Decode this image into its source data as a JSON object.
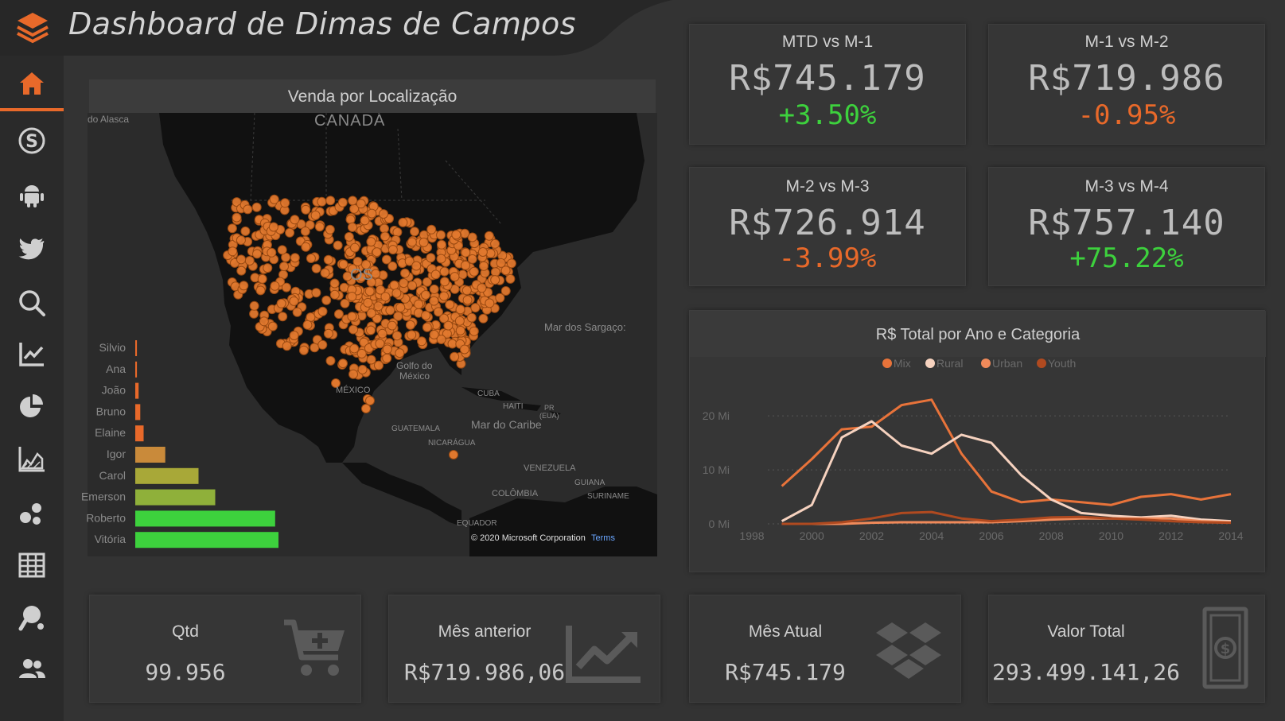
{
  "header": {
    "title": "Dashboard de Dimas de Campos",
    "logo_icon": "layers-icon"
  },
  "sidebar": {
    "items": [
      {
        "name": "home",
        "icon": "home-icon",
        "active": true
      },
      {
        "name": "skype",
        "icon": "skype-icon"
      },
      {
        "name": "android",
        "icon": "android-icon"
      },
      {
        "name": "twitter",
        "icon": "twitter-icon"
      },
      {
        "name": "search",
        "icon": "search-icon"
      },
      {
        "name": "line-chart",
        "icon": "line-chart-icon"
      },
      {
        "name": "pie-chart",
        "icon": "pie-chart-icon"
      },
      {
        "name": "area-chart",
        "icon": "area-chart-icon"
      },
      {
        "name": "scatter",
        "icon": "scatter-icon"
      },
      {
        "name": "table",
        "icon": "table-icon"
      },
      {
        "name": "ping-pong",
        "icon": "ping-pong-icon"
      },
      {
        "name": "users",
        "icon": "users-icon"
      }
    ]
  },
  "colors": {
    "accent": "#e8692a",
    "positive": "#3dd13d",
    "negative": "#e8692a",
    "background": "#333333"
  },
  "kpis": [
    {
      "label": "MTD vs M-1",
      "value": "R$745.179",
      "delta": "+3.50%",
      "trend": "up"
    },
    {
      "label": "M-1 vs M-2",
      "value": "R$719.986",
      "delta": "-0.95%",
      "trend": "down"
    },
    {
      "label": "M-2 vs M-3",
      "value": "R$726.914",
      "delta": "-3.99%",
      "trend": "down"
    },
    {
      "label": "M-3 vs M-4",
      "value": "R$757.140",
      "delta": "+75.22%",
      "trend": "up"
    }
  ],
  "map": {
    "title": "Venda por Localização",
    "labels": {
      "alaska": "do Alasca",
      "canada": "CANADÁ",
      "sargasso": "Mar dos Sargaço:",
      "gulf1": "Golfo do",
      "gulf2": "México",
      "mexico": "MÉXICO",
      "cuba": "CUBA",
      "haiti": "HAITI",
      "pr1": "PR",
      "pr2": "(EUA)",
      "caribbean": "Mar do Caribe",
      "guatemala": "GUATEMALA",
      "nicaragua": "NICARÁGUA",
      "venezuela": "VENEZUELA",
      "guiana": "GUIANA",
      "suriname": "SURINAME",
      "colombia": "COLÔMBIA",
      "ecuador": "EQUADOR",
      "us": "OS"
    },
    "copyright": "© 2020 Microsoft Corporation",
    "terms": "Terms"
  },
  "bar_chart": {
    "type": "bar",
    "orientation": "horizontal",
    "categories": [
      "Silvio",
      "Ana",
      "João",
      "Bruno",
      "Elaine",
      "Igor",
      "Carol",
      "Emerson",
      "Roberto",
      "Vitória"
    ],
    "values": [
      1,
      1,
      2,
      3,
      5,
      18,
      38,
      48,
      84,
      86
    ],
    "colors": [
      "#e8692a",
      "#e8692a",
      "#e8692a",
      "#e8692a",
      "#e8692a",
      "#c98a3a",
      "#a8a838",
      "#8fb03a",
      "#3dd13d",
      "#3dd13d"
    ]
  },
  "chart_data": {
    "type": "line",
    "title": "R$ Total por Ano e Categoria",
    "x": [
      1999,
      2000,
      2001,
      2002,
      2003,
      2004,
      2005,
      2006,
      2007,
      2008,
      2009,
      2010,
      2011,
      2012,
      2013,
      2014
    ],
    "x_ticks": [
      "1998",
      "2000",
      "2002",
      "2004",
      "2006",
      "2008",
      "2010",
      "2012",
      "2014"
    ],
    "xlim": [
      1998,
      2014
    ],
    "ylim": [
      0,
      24
    ],
    "y_ticks": [
      {
        "value": 0,
        "label": "0 Mi"
      },
      {
        "value": 10,
        "label": "10 Mi"
      },
      {
        "value": 20,
        "label": "20 Mi"
      }
    ],
    "grid": true,
    "legend_position": "top",
    "series": [
      {
        "name": "Mix",
        "color": "#e8733a",
        "values": [
          7,
          12,
          17.5,
          18,
          22,
          23,
          13,
          6,
          4,
          4.5,
          4,
          3.5,
          5,
          5.5,
          4.5,
          5.5
        ]
      },
      {
        "name": "Rural",
        "color": "#f6d2bf",
        "values": [
          0.5,
          3.5,
          16,
          19,
          14.5,
          13,
          16.5,
          15,
          9,
          4.5,
          2,
          1.5,
          1.2,
          1.5,
          0.8,
          0.5
        ]
      },
      {
        "name": "Urban",
        "color": "#f08a5a",
        "values": [
          0,
          0,
          0,
          0.2,
          0.3,
          0.3,
          0.3,
          0.3,
          0.5,
          0.8,
          1,
          1,
          1,
          1,
          0.5,
          0.3
        ]
      },
      {
        "name": "Youth",
        "color": "#b04a20",
        "values": [
          0,
          0,
          0.3,
          1,
          2,
          2.2,
          1,
          0.5,
          0.8,
          1.2,
          1.3,
          1,
          0.8,
          0.5,
          0.3,
          0.2
        ]
      }
    ]
  },
  "bottom_kpis": [
    {
      "label": "Qtd",
      "value": "99.956",
      "icon": "cart-plus-icon"
    },
    {
      "label": "Mês anterior",
      "value": "R$719.986,06",
      "icon": "area-chart-icon"
    },
    {
      "label": "Mês Atual",
      "value": "R$745.179",
      "icon": "dropbox-icon"
    },
    {
      "label": "Valor Total",
      "value": "293.499.141,26",
      "icon": "money-bill-icon"
    }
  ]
}
